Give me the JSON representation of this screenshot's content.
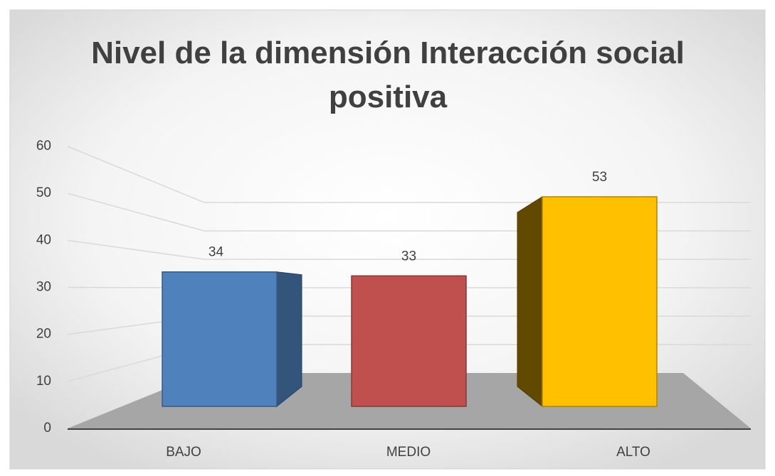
{
  "chart_data": {
    "type": "bar",
    "title": "Nivel de la dimensión  Interacción social positiva",
    "categories": [
      "BAJO",
      "MEDIO",
      "ALTO"
    ],
    "values": [
      34,
      33,
      53
    ],
    "colors": [
      "#4f81bd",
      "#c0504d",
      "#ffc000"
    ],
    "ylim": [
      0,
      60
    ],
    "yticks": [
      0,
      10,
      20,
      30,
      40,
      50,
      60
    ],
    "grid": true
  }
}
